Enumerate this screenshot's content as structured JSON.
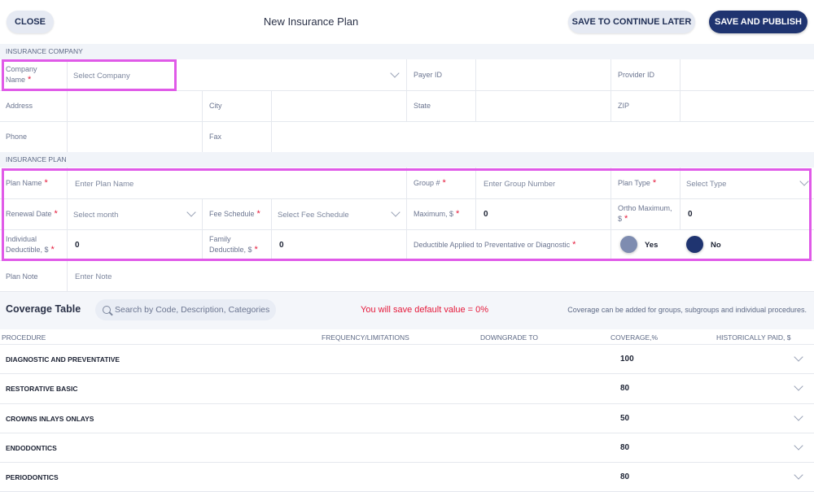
{
  "header": {
    "close_label": "CLOSE",
    "title": "New Insurance Plan",
    "save_later_label": "SAVE TO CONTINUE LATER",
    "publish_label": "SAVE AND PUBLISH"
  },
  "insurance_company": {
    "section_label": "INSURANCE COMPANY",
    "company_name_label": "Company Name",
    "company_name_placeholder": "Select Company",
    "payer_id_label": "Payer ID",
    "provider_id_label": "Provider ID",
    "address_label": "Address",
    "city_label": "City",
    "state_label": "State",
    "zip_label": "ZIP",
    "phone_label": "Phone",
    "fax_label": "Fax"
  },
  "insurance_plan": {
    "section_label": "INSURANCE PLAN",
    "plan_name_label": "Plan Name",
    "plan_name_placeholder": "Enter Plan Name",
    "group_label": "Group #",
    "group_placeholder": "Enter Group Number",
    "plan_type_label": "Plan Type",
    "plan_type_placeholder": "Select Type",
    "renewal_date_label": "Renewal Date",
    "renewal_date_placeholder": "Select month",
    "fee_schedule_label": "Fee Schedule",
    "fee_schedule_placeholder": "Select Fee Schedule",
    "maximum_label": "Maximum, $",
    "maximum_value": "0",
    "ortho_max_label": "Ortho Maximum, $",
    "ortho_max_value": "0",
    "individual_deductible_label": "Individual Deductible, $",
    "individual_deductible_value": "0",
    "family_deductible_label": "Family Deductible, $",
    "family_deductible_value": "0",
    "deductible_applied_label": "Deductible Applied to Preventative or Diagnostic",
    "yes_label": "Yes",
    "no_label": "No",
    "plan_note_label": "Plan Note",
    "plan_note_placeholder": "Enter Note"
  },
  "coverage": {
    "title": "Coverage Table",
    "search_placeholder": "Search by Code, Description, Categories",
    "warning": "You will save default value = 0%",
    "note": "Coverage can be added for groups, subgroups and individual procedures.",
    "columns": [
      "PROCEDURE",
      "FREQUENCY/LIMITATIONS",
      "DOWNGRADE TO",
      "COVERAGE,%",
      "HISTORICALLY PAID, $"
    ],
    "rows": [
      {
        "name": "DIAGNOSTIC AND PREVENTATIVE",
        "coverage": "100"
      },
      {
        "name": "RESTORATIVE BASIC",
        "coverage": "80"
      },
      {
        "name": "CROWNS INLAYS ONLAYS",
        "coverage": "50"
      },
      {
        "name": "ENDODONTICS",
        "coverage": "80"
      },
      {
        "name": "PERIODONTICS",
        "coverage": "80"
      }
    ]
  },
  "colors": {
    "primary": "#1f3470",
    "required": "#e5193a",
    "highlight": "#e05ae8"
  }
}
